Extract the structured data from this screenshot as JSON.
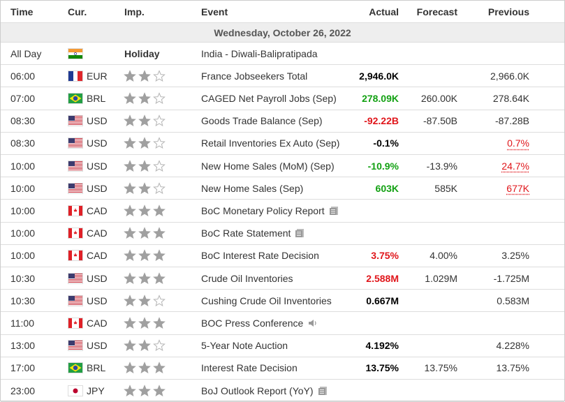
{
  "header": {
    "time": "Time",
    "currency": "Cur.",
    "importance": "Imp.",
    "event": "Event",
    "actual": "Actual",
    "forecast": "Forecast",
    "previous": "Previous"
  },
  "date": "Wednesday, October 26, 2022",
  "rows": [
    {
      "time": "All Day",
      "flag": "in",
      "currency": null,
      "importance": null,
      "importance_label": "Holiday",
      "event": "India - Diwali-Balipratipada",
      "icon": null,
      "actual": null,
      "actual_color": null,
      "forecast": null,
      "previous": null,
      "previous_revised": false
    },
    {
      "time": "06:00",
      "flag": "fr",
      "currency": "EUR",
      "importance": 2,
      "importance_label": null,
      "event": "France Jobseekers Total",
      "icon": null,
      "actual": "2,946.0K",
      "actual_color": "#000000",
      "forecast": null,
      "previous": "2,966.0K",
      "previous_revised": false
    },
    {
      "time": "07:00",
      "flag": "br",
      "currency": "BRL",
      "importance": 2,
      "importance_label": null,
      "event": "CAGED Net Payroll Jobs (Sep)",
      "icon": null,
      "actual": "278.09K",
      "actual_color": "#13a113",
      "forecast": "260.00K",
      "previous": "278.64K",
      "previous_revised": false
    },
    {
      "time": "08:30",
      "flag": "us",
      "currency": "USD",
      "importance": 2,
      "importance_label": null,
      "event": "Goods Trade Balance (Sep)",
      "icon": null,
      "actual": "-92.22B",
      "actual_color": "#e0161b",
      "forecast": "-87.50B",
      "previous": "-87.28B",
      "previous_revised": false
    },
    {
      "time": "08:30",
      "flag": "us",
      "currency": "USD",
      "importance": 2,
      "importance_label": null,
      "event": "Retail Inventories Ex Auto (Sep)",
      "icon": null,
      "actual": "-0.1%",
      "actual_color": "#000000",
      "forecast": null,
      "previous": "0.7%",
      "previous_revised": true
    },
    {
      "time": "10:00",
      "flag": "us",
      "currency": "USD",
      "importance": 2,
      "importance_label": null,
      "event": "New Home Sales (MoM) (Sep)",
      "icon": null,
      "actual": "-10.9%",
      "actual_color": "#13a113",
      "forecast": "-13.9%",
      "previous": "24.7%",
      "previous_revised": true
    },
    {
      "time": "10:00",
      "flag": "us",
      "currency": "USD",
      "importance": 2,
      "importance_label": null,
      "event": "New Home Sales (Sep)",
      "icon": null,
      "actual": "603K",
      "actual_color": "#13a113",
      "forecast": "585K",
      "previous": "677K",
      "previous_revised": true
    },
    {
      "time": "10:00",
      "flag": "ca",
      "currency": "CAD",
      "importance": 3,
      "importance_label": null,
      "event": "BoC Monetary Policy Report",
      "icon": "doc",
      "actual": null,
      "actual_color": null,
      "forecast": null,
      "previous": null,
      "previous_revised": false
    },
    {
      "time": "10:00",
      "flag": "ca",
      "currency": "CAD",
      "importance": 3,
      "importance_label": null,
      "event": "BoC Rate Statement",
      "icon": "doc",
      "actual": null,
      "actual_color": null,
      "forecast": null,
      "previous": null,
      "previous_revised": false
    },
    {
      "time": "10:00",
      "flag": "ca",
      "currency": "CAD",
      "importance": 3,
      "importance_label": null,
      "event": "BoC Interest Rate Decision",
      "icon": null,
      "actual": "3.75%",
      "actual_color": "#e0161b",
      "forecast": "4.00%",
      "previous": "3.25%",
      "previous_revised": false
    },
    {
      "time": "10:30",
      "flag": "us",
      "currency": "USD",
      "importance": 3,
      "importance_label": null,
      "event": "Crude Oil Inventories",
      "icon": null,
      "actual": "2.588M",
      "actual_color": "#e0161b",
      "forecast": "1.029M",
      "previous": "-1.725M",
      "previous_revised": false
    },
    {
      "time": "10:30",
      "flag": "us",
      "currency": "USD",
      "importance": 2,
      "importance_label": null,
      "event": "Cushing Crude Oil Inventories",
      "icon": null,
      "actual": "0.667M",
      "actual_color": "#000000",
      "forecast": null,
      "previous": "0.583M",
      "previous_revised": false
    },
    {
      "time": "11:00",
      "flag": "ca",
      "currency": "CAD",
      "importance": 3,
      "importance_label": null,
      "event": "BOC Press Conference",
      "icon": "audio",
      "actual": null,
      "actual_color": null,
      "forecast": null,
      "previous": null,
      "previous_revised": false
    },
    {
      "time": "13:00",
      "flag": "us",
      "currency": "USD",
      "importance": 2,
      "importance_label": null,
      "event": "5-Year Note Auction",
      "icon": null,
      "actual": "4.192%",
      "actual_color": "#000000",
      "forecast": null,
      "previous": "4.228%",
      "previous_revised": false
    },
    {
      "time": "17:00",
      "flag": "br",
      "currency": "BRL",
      "importance": 3,
      "importance_label": null,
      "event": "Interest Rate Decision",
      "icon": null,
      "actual": "13.75%",
      "actual_color": "#000000",
      "forecast": "13.75%",
      "previous": "13.75%",
      "previous_revised": false
    },
    {
      "time": "23:00",
      "flag": "jp",
      "currency": "JPY",
      "importance": 3,
      "importance_label": null,
      "event": "BoJ Outlook Report (YoY)",
      "icon": "doc",
      "actual": null,
      "actual_color": null,
      "forecast": null,
      "previous": null,
      "previous_revised": false
    }
  ]
}
